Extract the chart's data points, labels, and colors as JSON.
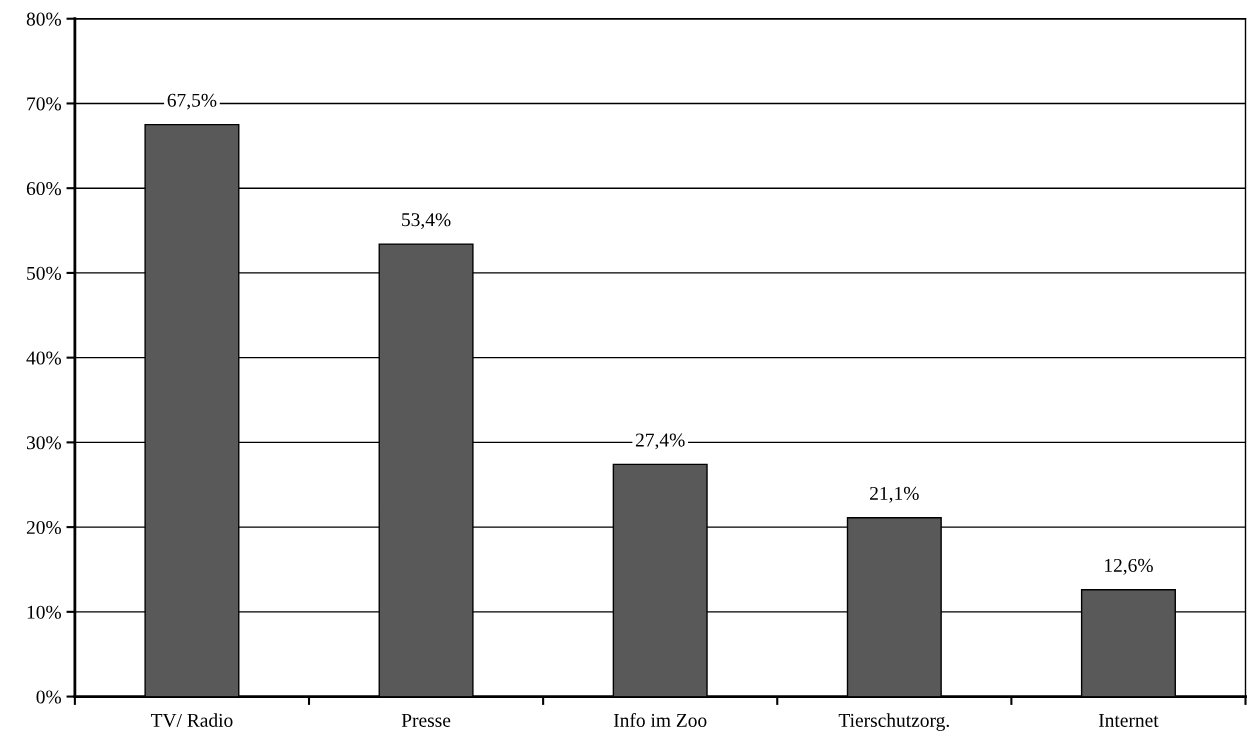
{
  "chart_data": {
    "type": "bar",
    "categories": [
      "TV/ Radio",
      "Presse",
      "Info im Zoo",
      "Tierschutzorg.",
      "Internet"
    ],
    "values": [
      67.5,
      53.4,
      27.4,
      21.1,
      12.6
    ],
    "value_labels": [
      "67,5%",
      "53,4%",
      "27,4%",
      "21,1%",
      "12,6%"
    ],
    "color": "#595959",
    "ylim": [
      0,
      80
    ],
    "yticks": [
      {
        "value": 0,
        "label": "0%"
      },
      {
        "value": 10,
        "label": "10%"
      },
      {
        "value": 20,
        "label": "20%"
      },
      {
        "value": 30,
        "label": "30%"
      },
      {
        "value": 40,
        "label": "40%"
      },
      {
        "value": 50,
        "label": "50%"
      },
      {
        "value": 60,
        "label": "60%"
      },
      {
        "value": 70,
        "label": "70%"
      },
      {
        "value": 80,
        "label": "80%"
      }
    ],
    "grid": "y"
  }
}
